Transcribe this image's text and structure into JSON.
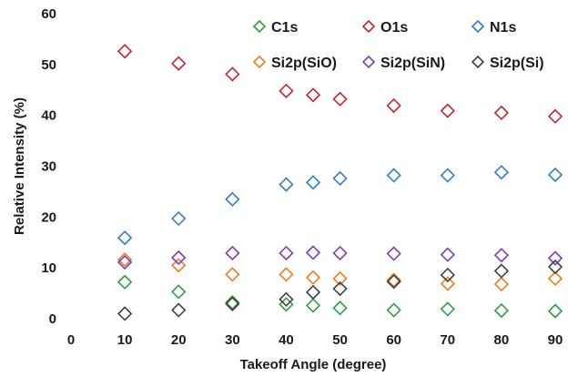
{
  "chart_data": {
    "type": "scatter",
    "title": "",
    "xlabel": "Takeoff Angle (degree)",
    "ylabel": "Relative Intensity (%)",
    "xlim": [
      0,
      90
    ],
    "ylim": [
      0,
      60
    ],
    "xticks": [
      0,
      10,
      20,
      30,
      40,
      50,
      60,
      70,
      80,
      90
    ],
    "yticks": [
      0,
      10,
      20,
      30,
      40,
      50,
      60
    ],
    "grid": false,
    "marker": "open-diamond",
    "legend_position": "top, inside plot, 3 columns",
    "x": [
      10,
      20,
      30,
      40,
      45,
      50,
      60,
      70,
      80,
      90
    ],
    "series": [
      {
        "name": "C1s",
        "color": "#2e9e44",
        "values": [
          7.2,
          5.3,
          3.2,
          2.8,
          2.6,
          2.1,
          1.7,
          1.9,
          1.6,
          1.5
        ]
      },
      {
        "name": "O1s",
        "color": "#c0272d",
        "values": [
          52.6,
          50.2,
          48.1,
          44.8,
          44.0,
          43.2,
          41.9,
          40.9,
          40.5,
          39.8
        ]
      },
      {
        "name": "N1s",
        "color": "#2e7fc6",
        "values": [
          15.9,
          19.7,
          23.5,
          26.4,
          26.8,
          27.6,
          28.2,
          28.2,
          28.8,
          28.3
        ]
      },
      {
        "name": "Si2p(SiO)",
        "color": "#f07c1b",
        "values": [
          11.6,
          10.5,
          8.7,
          8.7,
          8.1,
          7.9,
          7.6,
          6.9,
          6.8,
          7.9
        ]
      },
      {
        "name": "Si2p(SiN)",
        "color": "#7a3fb5",
        "values": [
          11.1,
          12.0,
          12.9,
          12.9,
          13.0,
          12.9,
          12.8,
          12.6,
          12.5,
          11.9
        ]
      },
      {
        "name": "Si2p(Si)",
        "color": "#404040",
        "values": [
          1.0,
          1.7,
          2.9,
          3.8,
          5.2,
          5.9,
          7.3,
          8.6,
          9.4,
          10.2
        ]
      }
    ]
  }
}
